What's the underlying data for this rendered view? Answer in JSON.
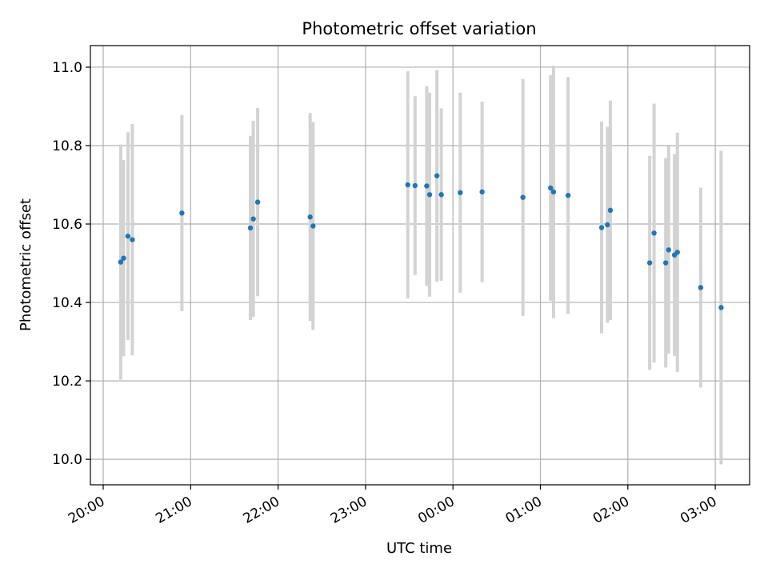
{
  "chart_data": {
    "type": "scatter",
    "title": "Photometric offset variation",
    "xlabel": "UTC time",
    "ylabel": "Photometric offset",
    "x_start": "20:00",
    "x_ticks": [
      "20:00",
      "21:00",
      "22:00",
      "23:00",
      "00:00",
      "01:00",
      "02:00",
      "03:00"
    ],
    "y_ticks": [
      "10.0",
      "10.2",
      "10.4",
      "10.6",
      "10.8",
      "11.0"
    ],
    "ylim": [
      9.935,
      11.055
    ],
    "grid": true,
    "colors": {
      "point": "#1f77b4",
      "errorbar": "#d3d3d3",
      "grid": "#b0b0b0"
    },
    "series": [
      {
        "points": [
          {
            "x": "20:12",
            "y": 10.503,
            "err": 0.3
          },
          {
            "x": "20:14",
            "y": 10.513,
            "err": 0.25
          },
          {
            "x": "20:17",
            "y": 10.569,
            "err": 0.265
          },
          {
            "x": "20:20",
            "y": 10.56,
            "err": 0.295
          },
          {
            "x": "20:54",
            "y": 10.628,
            "err": 0.25
          },
          {
            "x": "21:41",
            "y": 10.59,
            "err": 0.235
          },
          {
            "x": "21:43",
            "y": 10.613,
            "err": 0.25
          },
          {
            "x": "21:46",
            "y": 10.656,
            "err": 0.24
          },
          {
            "x": "22:22",
            "y": 10.618,
            "err": 0.265
          },
          {
            "x": "22:24",
            "y": 10.595,
            "err": 0.265
          },
          {
            "x": "23:29",
            "y": 10.7,
            "err": 0.29
          },
          {
            "x": "23:34",
            "y": 10.698,
            "err": 0.228
          },
          {
            "x": "23:42",
            "y": 10.697,
            "err": 0.255
          },
          {
            "x": "23:44",
            "y": 10.675,
            "err": 0.26
          },
          {
            "x": "23:49",
            "y": 10.723,
            "err": 0.27
          },
          {
            "x": "23:52",
            "y": 10.675,
            "err": 0.22
          },
          {
            "x": "00:05",
            "y": 10.68,
            "err": 0.255
          },
          {
            "x": "00:20",
            "y": 10.682,
            "err": 0.23
          },
          {
            "x": "00:48",
            "y": 10.668,
            "err": 0.302
          },
          {
            "x": "01:07",
            "y": 10.692,
            "err": 0.288
          },
          {
            "x": "01:09",
            "y": 10.682,
            "err": 0.322
          },
          {
            "x": "01:19",
            "y": 10.673,
            "err": 0.302
          },
          {
            "x": "01:42",
            "y": 10.591,
            "err": 0.27
          },
          {
            "x": "01:46",
            "y": 10.598,
            "err": 0.25
          },
          {
            "x": "01:48",
            "y": 10.635,
            "err": 0.28
          },
          {
            "x": "02:15",
            "y": 10.501,
            "err": 0.273
          },
          {
            "x": "02:18",
            "y": 10.577,
            "err": 0.33
          },
          {
            "x": "02:26",
            "y": 10.501,
            "err": 0.267
          },
          {
            "x": "02:28",
            "y": 10.534,
            "err": 0.265
          },
          {
            "x": "02:32",
            "y": 10.521,
            "err": 0.257
          },
          {
            "x": "02:34",
            "y": 10.528,
            "err": 0.305
          },
          {
            "x": "02:50",
            "y": 10.438,
            "err": 0.255
          },
          {
            "x": "03:04",
            "y": 10.387,
            "err": 0.4
          }
        ]
      }
    ]
  }
}
